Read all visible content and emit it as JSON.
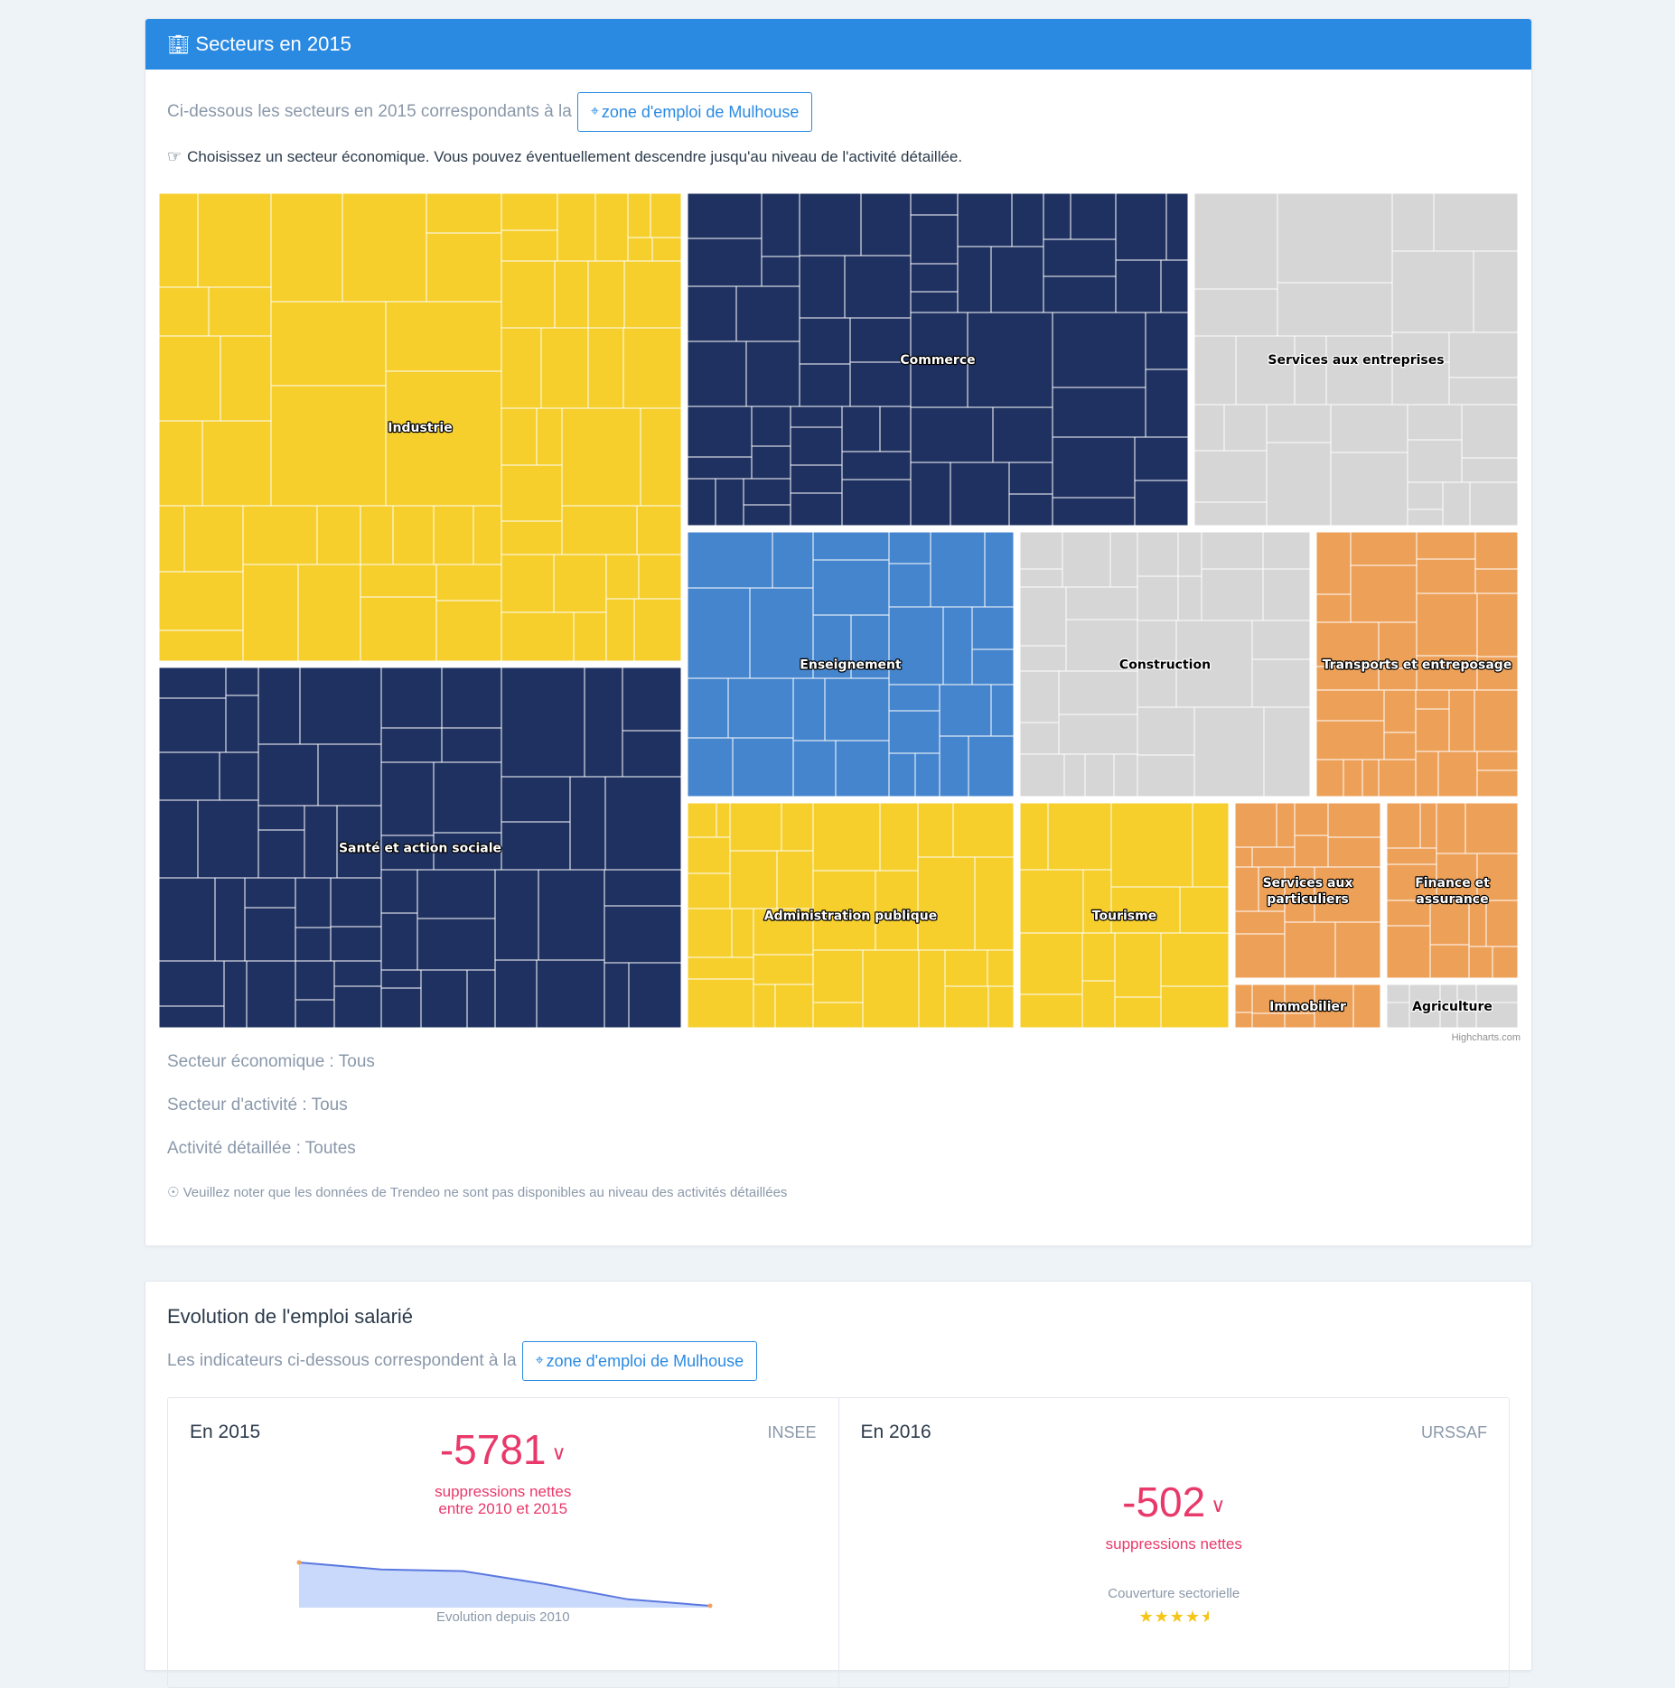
{
  "sectors_card": {
    "title": "Secteurs en 2015",
    "title_icon": "building-icon",
    "intro": "Ci-dessous les secteurs en 2015 correspondants à la",
    "zone_button": "zone d'emploi de Mulhouse",
    "hint": "Choisissez un secteur économique. Vous pouvez éventuellement descendre jusqu'au niveau de l'activité détaillée.",
    "credit": "Highcharts.com",
    "filters": {
      "economic": "Secteur économique : Tous",
      "activity": "Secteur d'activité : Tous",
      "detailed": "Activité détaillée : Toutes"
    },
    "note": "Veuillez noter que les données de Trendeo ne sont pas disponibles au niveau des activités détaillées"
  },
  "chart_data": {
    "type": "treemap",
    "colors": {
      "yellow": "#f6cf2d",
      "navy": "#1f3160",
      "grey": "#d6d6d6",
      "blue": "#4585cd",
      "orange": "#eda058"
    },
    "sectors": [
      {
        "name": "Industrie",
        "color": "#f6cf2d"
      },
      {
        "name": "Commerce",
        "color": "#1f3160"
      },
      {
        "name": "Services aux entreprises",
        "color": "#d6d6d6"
      },
      {
        "name": "Santé et action sociale",
        "color": "#1f3160"
      },
      {
        "name": "Enseignement",
        "color": "#4585cd"
      },
      {
        "name": "Construction",
        "color": "#d6d6d6"
      },
      {
        "name": "Transports et entreposage",
        "color": "#eda058"
      },
      {
        "name": "Administration publique",
        "color": "#f6cf2d"
      },
      {
        "name": "Tourisme",
        "color": "#f6cf2d"
      },
      {
        "name": "Services aux particuliers",
        "color": "#eda058"
      },
      {
        "name": "Finance et assurance",
        "color": "#eda058"
      },
      {
        "name": "Immobilier",
        "color": "#eda058"
      },
      {
        "name": "Agriculture",
        "color": "#d6d6d6"
      }
    ]
  },
  "evolution_card": {
    "title": "Evolution de l'emploi salarié",
    "intro": "Les indicateurs ci-dessous correspondent à la",
    "zone_button": "zone d'emploi de Mulhouse",
    "panel_2015": {
      "year": "En 2015",
      "source": "INSEE",
      "value": "-5781",
      "label_line1": "suppressions nettes",
      "label_line2": "entre 2010 et 2015",
      "sparkline_caption": "Evolution depuis 2010",
      "sparkline_trend": [
        1.0,
        0.84,
        0.8,
        0.5,
        0.15,
        0.0
      ]
    },
    "panel_2016": {
      "year": "En 2016",
      "source": "URSSAF",
      "value": "-502",
      "label": "suppressions nettes",
      "coverage_label": "Couverture sectorielle",
      "coverage_stars": 4.5
    }
  }
}
